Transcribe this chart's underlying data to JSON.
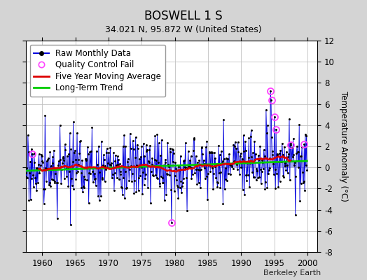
{
  "title": "BOSWELL 1 S",
  "subtitle": "34.021 N, 95.872 W (United States)",
  "ylabel": "Temperature Anomaly (°C)",
  "xlabel_credit": "Berkeley Earth",
  "xlim": [
    1957.5,
    2001.5
  ],
  "ylim": [
    -8,
    12
  ],
  "yticks": [
    -8,
    -6,
    -4,
    -2,
    0,
    2,
    4,
    6,
    8,
    10,
    12
  ],
  "xticks": [
    1960,
    1965,
    1970,
    1975,
    1980,
    1985,
    1990,
    1995,
    2000
  ],
  "fig_bg_color": "#d4d4d4",
  "plot_bg_color": "#ffffff",
  "line_color": "#0000dd",
  "moving_avg_color": "#dd0000",
  "trend_color": "#00cc00",
  "qc_fail_color": "#ff44ff",
  "seed": 17,
  "n_months": 516,
  "start_year": 1957.0,
  "trend_slope_per_year": 0.022,
  "trend_intercept": -0.33,
  "noise_std": 1.55,
  "qc_fail_points": [
    [
      1958.5,
      1.3
    ],
    [
      1979.5,
      -5.2
    ],
    [
      1994.42,
      7.2
    ],
    [
      1994.58,
      6.4
    ],
    [
      1995.0,
      4.8
    ],
    [
      1995.25,
      3.6
    ],
    [
      1997.5,
      2.1
    ],
    [
      1999.5,
      2.2
    ]
  ],
  "legend_fontsize": 8.5,
  "title_fontsize": 12,
  "subtitle_fontsize": 9,
  "tick_fontsize": 8.5
}
